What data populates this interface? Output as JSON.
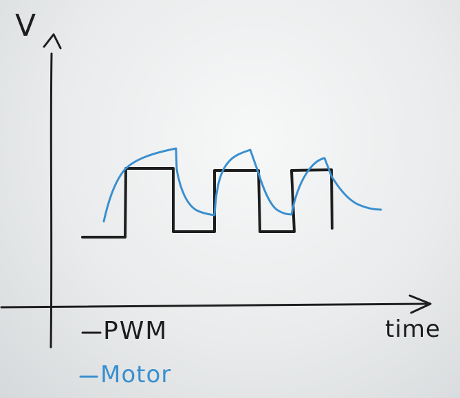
{
  "axes": {
    "y_label": "V",
    "x_label": "time"
  },
  "legend": {
    "pwm": "PWM",
    "motor": "Motor"
  },
  "colors": {
    "pwm": "#1d1d1d",
    "motor": "#3a8fcf",
    "axis": "#1d1d1d"
  }
}
